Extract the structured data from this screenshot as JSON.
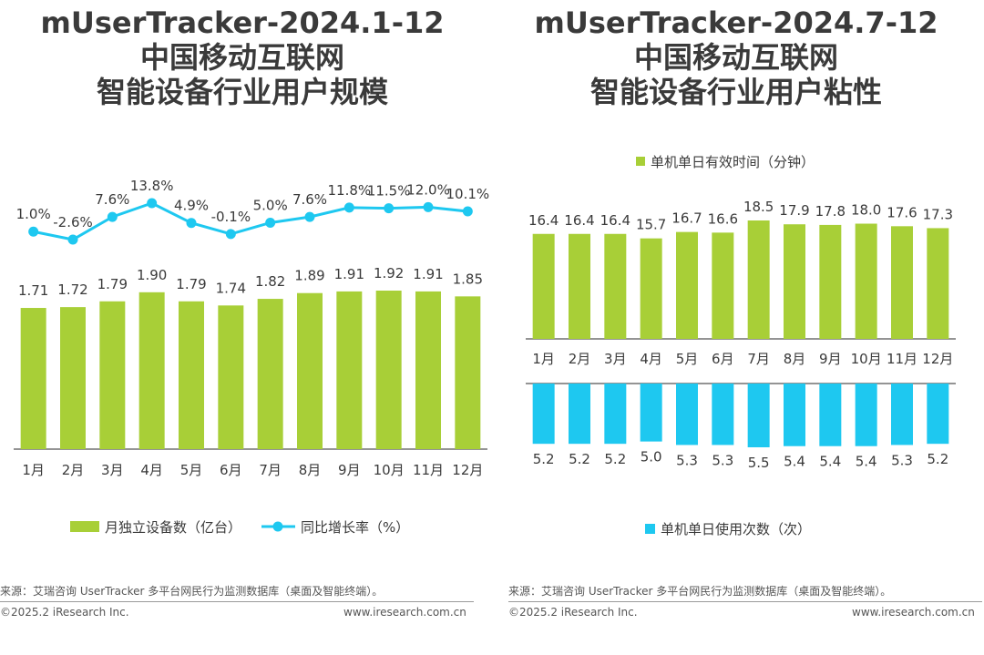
{
  "left": {
    "title": [
      "mUserTracker-2024.1-12",
      "中国移动互联网",
      "智能设备行业用户规模"
    ],
    "legend": {
      "bar": "月独立设备数（亿台）",
      "line": "同比增长率（%）"
    },
    "source": "来源：艾瑞咨询 UserTracker 多平台网民行为监测数据库（桌面及智能终端）。",
    "copyright": "©2025.2 iResearch Inc.",
    "website": "www.iresearch.com.cn"
  },
  "right": {
    "title": [
      "mUserTracker-2024.7-12",
      "中国移动互联网",
      "智能设备行业用户粘性"
    ],
    "legend_top": "单机单日有效时间（分钟）",
    "legend_bottom": "单机单日使用次数（次）",
    "source": "来源：艾瑞咨询 UserTracker 多平台网民行为监测数据库（桌面及智能终端）。",
    "copyright": "©2025.2 iResearch Inc.",
    "website": "www.iresearch.com.cn"
  },
  "colors": {
    "green": "#a8cf37",
    "blue": "#1ec8f0",
    "line": "#1ec8f0",
    "text": "#3a3a3a"
  },
  "chart_data": [
    {
      "type": "bar",
      "title": "mUserTracker-2024.1-12 中国移动互联网 智能设备行业用户规模",
      "categories": [
        "1月",
        "2月",
        "3月",
        "4月",
        "5月",
        "6月",
        "7月",
        "8月",
        "9月",
        "10月",
        "11月",
        "12月"
      ],
      "series": [
        {
          "name": "月独立设备数（亿台）",
          "type": "bar",
          "values": [
            1.71,
            1.72,
            1.79,
            1.9,
            1.79,
            1.74,
            1.82,
            1.89,
            1.91,
            1.92,
            1.91,
            1.85
          ],
          "labels": [
            "1.71",
            "1.72",
            "1.79",
            "1.90",
            "1.79",
            "1.74",
            "1.82",
            "1.89",
            "1.91",
            "1.92",
            "1.91",
            "1.85"
          ]
        },
        {
          "name": "同比增长率（%）",
          "type": "line",
          "values": [
            1.0,
            -2.6,
            7.6,
            13.8,
            4.9,
            -0.1,
            5.0,
            7.6,
            11.8,
            11.5,
            12.0,
            10.1
          ],
          "labels": [
            "1.0%",
            "-2.6%",
            "7.6%",
            "13.8%",
            "4.9%",
            "-0.1%",
            "5.0%",
            "7.6%",
            "11.8%",
            "11.5%",
            "12.0%",
            "10.1%"
          ]
        }
      ],
      "legend": "bottom"
    },
    {
      "type": "bar",
      "title": "mUserTracker-2024.7-12 中国移动互联网 智能设备行业用户粘性",
      "categories": [
        "1月",
        "2月",
        "3月",
        "4月",
        "5月",
        "6月",
        "7月",
        "8月",
        "9月",
        "10月",
        "11月",
        "12月"
      ],
      "series": [
        {
          "name": "单机单日有效时间（分钟）",
          "values": [
            16.4,
            16.4,
            16.4,
            15.7,
            16.7,
            16.6,
            18.5,
            17.9,
            17.8,
            18.0,
            17.6,
            17.3
          ],
          "labels": [
            "16.4",
            "16.4",
            "16.4",
            "15.7",
            "16.7",
            "16.6",
            "18.5",
            "17.9",
            "17.8",
            "18.0",
            "17.6",
            "17.3"
          ]
        },
        {
          "name": "单机单日使用次数（次）",
          "values": [
            5.2,
            5.2,
            5.2,
            5.0,
            5.3,
            5.3,
            5.5,
            5.4,
            5.4,
            5.4,
            5.3,
            5.2
          ],
          "labels": [
            "5.2",
            "5.2",
            "5.2",
            "5.0",
            "5.3",
            "5.3",
            "5.5",
            "5.4",
            "5.4",
            "5.4",
            "5.3",
            "5.2"
          ]
        }
      ],
      "legend": "top / bottom"
    }
  ]
}
